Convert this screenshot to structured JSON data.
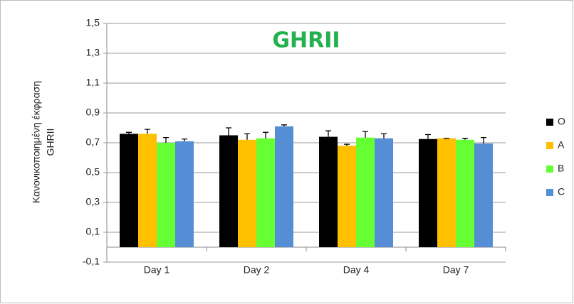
{
  "chart_data": {
    "type": "bar",
    "title": "GHRII",
    "y_label": [
      "Κανονικοποιημένη έκφραση",
      "GHRII"
    ],
    "categories": [
      "Day 1",
      "Day 2",
      "Day 4",
      "Day 7"
    ],
    "series": [
      {
        "name": "O",
        "color": "#000000",
        "values": [
          0.76,
          0.75,
          0.74,
          0.725
        ],
        "errors": [
          0.01,
          0.05,
          0.04,
          0.03
        ]
      },
      {
        "name": "A",
        "color": "#ffc000",
        "values": [
          0.76,
          0.72,
          0.68,
          0.73
        ],
        "errors": [
          0.03,
          0.04,
          0.01,
          0
        ]
      },
      {
        "name": "B",
        "color": "#66ff33",
        "values": [
          0.7,
          0.73,
          0.735,
          0.72
        ],
        "errors": [
          0.035,
          0.04,
          0.04,
          0.01
        ]
      },
      {
        "name": "C",
        "color": "#558ed5",
        "values": [
          0.71,
          0.81,
          0.73,
          0.695
        ],
        "errors": [
          0.015,
          0.01,
          0.03,
          0.04
        ]
      }
    ],
    "ylim": [
      -0.1,
      1.5
    ],
    "yticks": [
      {
        "value": -0.1,
        "label": "-0,1"
      },
      {
        "value": 0.1,
        "label": "0,1"
      },
      {
        "value": 0.3,
        "label": "0,3"
      },
      {
        "value": 0.5,
        "label": "0,5"
      },
      {
        "value": 0.7,
        "label": "0,7"
      },
      {
        "value": 0.9,
        "label": "0,9"
      },
      {
        "value": 1.1,
        "label": "1,1"
      },
      {
        "value": 1.3,
        "label": "1,3"
      },
      {
        "value": 1.5,
        "label": "1,5"
      }
    ],
    "grid": true,
    "legend": "right"
  }
}
